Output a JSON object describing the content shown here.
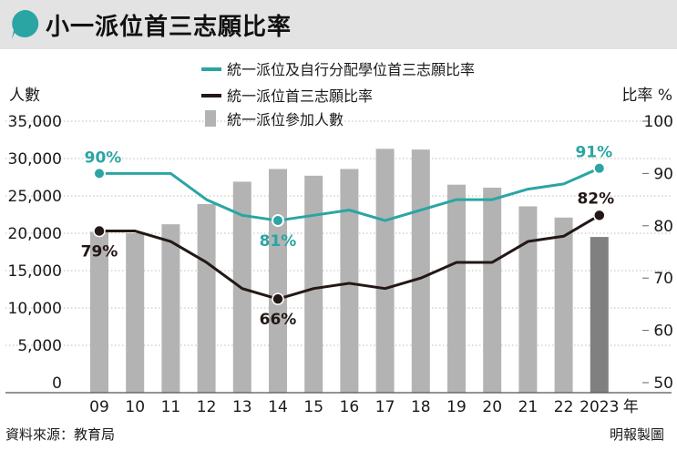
{
  "chart_data": {
    "type": "bar+line",
    "title": "小一派位首三志願比率",
    "categories": [
      "09",
      "10",
      "11",
      "12",
      "13",
      "14",
      "15",
      "16",
      "17",
      "18",
      "19",
      "20",
      "21",
      "22",
      "2023"
    ],
    "year_suffix": "年",
    "y_left": {
      "label": "人數",
      "range": [
        0,
        35000
      ],
      "ticks": [
        "0",
        "5,000",
        "10,000",
        "15,000",
        "20,000",
        "25,000",
        "30,000",
        "35,000"
      ]
    },
    "y_right": {
      "label": "比率 %",
      "range": [
        50,
        100
      ],
      "ticks": [
        "50",
        "60",
        "70",
        "80",
        "90",
        "100"
      ]
    },
    "series": [
      {
        "name": "統一派位及自行分配學位首三志願比率",
        "type": "line",
        "axis": "right",
        "color": "#2aa5a3",
        "values": [
          90,
          90,
          90,
          85,
          82,
          81,
          82,
          83,
          81,
          83,
          85,
          85,
          87,
          88,
          91
        ]
      },
      {
        "name": "統一派位首三志願比率",
        "type": "line",
        "axis": "right",
        "color": "#231815",
        "values": [
          79,
          79,
          77,
          73,
          68,
          66,
          68,
          69,
          68,
          70,
          73,
          73,
          77,
          78,
          82
        ]
      },
      {
        "name": "統一派位參加人數",
        "type": "bar",
        "axis": "left",
        "color": "#b3b3b3",
        "highlight_color": "#808080",
        "values": [
          20200,
          20000,
          21200,
          23900,
          26900,
          28600,
          27700,
          28600,
          31300,
          31200,
          26500,
          26100,
          23600,
          22100,
          19500
        ]
      }
    ],
    "annotations": [
      {
        "series": 0,
        "index": 0,
        "text": "90%"
      },
      {
        "series": 0,
        "index": 5,
        "text": "81%"
      },
      {
        "series": 0,
        "index": 14,
        "text": "91%"
      },
      {
        "series": 1,
        "index": 0,
        "text": "79%"
      },
      {
        "series": 1,
        "index": 5,
        "text": "66%"
      },
      {
        "series": 1,
        "index": 14,
        "text": "82%"
      }
    ]
  },
  "footer": {
    "source": "資料來源：教育局",
    "credit": "明報製圖"
  }
}
